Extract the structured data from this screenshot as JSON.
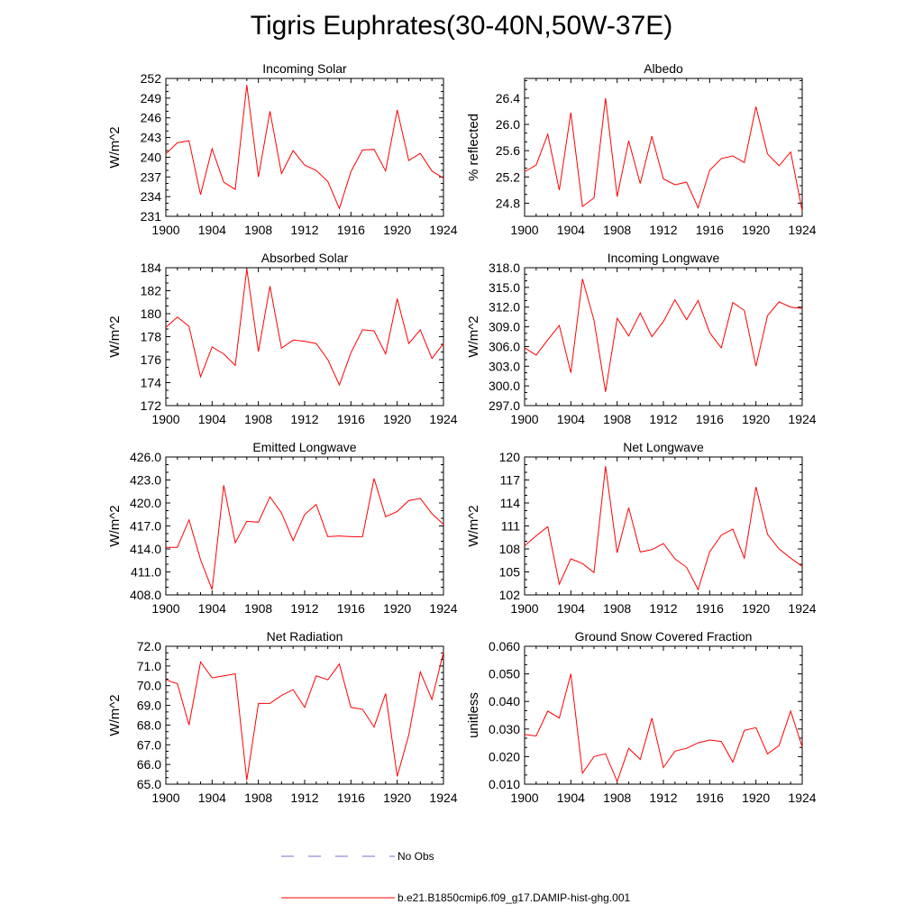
{
  "figure": {
    "title": "Tigris Euphrates(30-40N,50W-37E)",
    "line_color": "#ff0000",
    "obs_color": "#6f6fd0"
  },
  "legend": {
    "entries": [
      {
        "label": "No Obs",
        "style": "dashed",
        "color": "#6f6fd0"
      },
      {
        "label": "b.e21.B1850cmip6.f09_g17.DAMIP-hist-ghg.001",
        "style": "solid",
        "color": "#ff0000"
      }
    ]
  },
  "chart_data": [
    {
      "type": "line",
      "title": "Incoming Solar",
      "ylabel": "W/m^2",
      "xlim": [
        1900,
        1924
      ],
      "ylim": [
        231,
        252
      ],
      "xticks": [
        "1900",
        "1904",
        "1908",
        "1912",
        "1916",
        "1920",
        "1924"
      ],
      "yticks": [
        "231",
        "234",
        "237",
        "240",
        "243",
        "246",
        "249",
        "252"
      ],
      "grid": false,
      "x": [
        1900,
        1901,
        1902,
        1903,
        1904,
        1905,
        1906,
        1907,
        1908,
        1909,
        1910,
        1911,
        1912,
        1913,
        1914,
        1915,
        1916,
        1917,
        1918,
        1919,
        1920,
        1921,
        1922,
        1923,
        1924
      ],
      "series": [
        {
          "name": "b.e21.B1850cmip6.f09_g17.DAMIP-hist-ghg.001",
          "values": [
            240.5,
            242.2,
            242.5,
            234.3,
            241.3,
            236.2,
            235.1,
            251.0,
            237.0,
            247.0,
            237.5,
            241.0,
            238.8,
            238.0,
            236.3,
            232.2,
            237.8,
            241.1,
            241.2,
            237.9,
            247.2,
            239.5,
            240.6,
            237.9,
            236.8
          ]
        }
      ]
    },
    {
      "type": "line",
      "title": "Albedo",
      "ylabel": "% reflected",
      "xlim": [
        1900,
        1924
      ],
      "ylim": [
        24.6,
        26.7
      ],
      "xticks": [
        "1900",
        "1904",
        "1908",
        "1912",
        "1916",
        "1920",
        "1924"
      ],
      "yticks": [
        "24.8",
        "25.2",
        "25.6",
        "26.0",
        "26.4"
      ],
      "grid": false,
      "x": [
        1900,
        1901,
        1902,
        1903,
        1904,
        1905,
        1906,
        1907,
        1908,
        1909,
        1910,
        1911,
        1912,
        1913,
        1914,
        1915,
        1916,
        1917,
        1918,
        1919,
        1920,
        1921,
        1922,
        1923,
        1924
      ],
      "series": [
        {
          "name": "b.e21.B1850cmip6.f09_g17.DAMIP-hist-ghg.001",
          "values": [
            25.28,
            25.38,
            25.85,
            25.0,
            26.18,
            24.75,
            24.88,
            26.4,
            24.9,
            25.75,
            25.1,
            25.82,
            25.17,
            25.08,
            25.12,
            24.73,
            25.3,
            25.48,
            25.52,
            25.42,
            26.27,
            25.55,
            25.37,
            25.58,
            24.68
          ]
        }
      ]
    },
    {
      "type": "line",
      "title": "Absorbed Solar",
      "ylabel": "W/m^2",
      "xlim": [
        1900,
        1924
      ],
      "ylim": [
        172,
        184
      ],
      "xticks": [
        "1900",
        "1904",
        "1908",
        "1912",
        "1916",
        "1920",
        "1924"
      ],
      "yticks": [
        "172",
        "174",
        "176",
        "178",
        "180",
        "182",
        "184"
      ],
      "grid": false,
      "x": [
        1900,
        1901,
        1902,
        1903,
        1904,
        1905,
        1906,
        1907,
        1908,
        1909,
        1910,
        1911,
        1912,
        1913,
        1914,
        1915,
        1916,
        1917,
        1918,
        1919,
        1920,
        1921,
        1922,
        1923,
        1924
      ],
      "series": [
        {
          "name": "b.e21.B1850cmip6.f09_g17.DAMIP-hist-ghg.001",
          "values": [
            178.8,
            179.7,
            178.9,
            174.5,
            177.1,
            176.5,
            175.5,
            183.9,
            176.7,
            182.4,
            177.0,
            177.7,
            177.6,
            177.4,
            176.0,
            173.8,
            176.6,
            178.6,
            178.5,
            176.5,
            181.3,
            177.4,
            178.6,
            176.1,
            177.4
          ]
        }
      ]
    },
    {
      "type": "line",
      "title": "Incoming Longwave",
      "ylabel": "W/m^2",
      "xlim": [
        1900,
        1924
      ],
      "ylim": [
        297,
        318
      ],
      "xticks": [
        "1900",
        "1904",
        "1908",
        "1912",
        "1916",
        "1920",
        "1924"
      ],
      "yticks": [
        "297.0",
        "300.0",
        "303.0",
        "306.0",
        "309.0",
        "312.0",
        "315.0",
        "318.0"
      ],
      "grid": false,
      "x": [
        1900,
        1901,
        1902,
        1903,
        1904,
        1905,
        1906,
        1907,
        1908,
        1909,
        1910,
        1911,
        1912,
        1913,
        1914,
        1915,
        1916,
        1917,
        1918,
        1919,
        1920,
        1921,
        1922,
        1923,
        1924
      ],
      "series": [
        {
          "name": "b.e21.B1850cmip6.f09_g17.DAMIP-hist-ghg.001",
          "values": [
            305.8,
            304.7,
            307.0,
            309.2,
            302.0,
            316.3,
            310.0,
            299.1,
            310.3,
            307.6,
            311.1,
            307.5,
            309.8,
            313.1,
            310.1,
            313.0,
            308.1,
            305.8,
            312.7,
            311.5,
            303.0,
            310.7,
            312.8,
            312.0,
            311.8
          ]
        }
      ]
    },
    {
      "type": "line",
      "title": "Emitted Longwave",
      "ylabel": "W/m^2",
      "xlim": [
        1900,
        1924
      ],
      "ylim": [
        408,
        426
      ],
      "xticks": [
        "1900",
        "1904",
        "1908",
        "1912",
        "1916",
        "1920",
        "1924"
      ],
      "yticks": [
        "408.0",
        "411.0",
        "414.0",
        "417.0",
        "420.0",
        "423.0",
        "426.0"
      ],
      "grid": false,
      "x": [
        1900,
        1901,
        1902,
        1903,
        1904,
        1905,
        1906,
        1907,
        1908,
        1909,
        1910,
        1911,
        1912,
        1913,
        1914,
        1915,
        1916,
        1917,
        1918,
        1919,
        1920,
        1921,
        1922,
        1923,
        1924
      ],
      "series": [
        {
          "name": "b.e21.B1850cmip6.f09_g17.DAMIP-hist-ghg.001",
          "values": [
            414.2,
            414.2,
            417.8,
            412.6,
            408.7,
            422.3,
            414.8,
            417.6,
            417.5,
            420.8,
            418.7,
            415.1,
            418.5,
            419.8,
            415.6,
            415.7,
            415.6,
            415.6,
            423.2,
            418.2,
            418.9,
            420.3,
            420.6,
            418.6,
            417.2
          ]
        }
      ]
    },
    {
      "type": "line",
      "title": "Net Longwave",
      "ylabel": "W/m^2",
      "xlim": [
        1900,
        1924
      ],
      "ylim": [
        102,
        120
      ],
      "xticks": [
        "1900",
        "1904",
        "1908",
        "1912",
        "1916",
        "1920",
        "1924"
      ],
      "yticks": [
        "102",
        "105",
        "108",
        "111",
        "114",
        "117",
        "120"
      ],
      "grid": false,
      "x": [
        1900,
        1901,
        1902,
        1903,
        1904,
        1905,
        1906,
        1907,
        1908,
        1909,
        1910,
        1911,
        1912,
        1913,
        1914,
        1915,
        1916,
        1917,
        1918,
        1919,
        1920,
        1921,
        1922,
        1923,
        1924
      ],
      "series": [
        {
          "name": "b.e21.B1850cmip6.f09_g17.DAMIP-hist-ghg.001",
          "values": [
            108.4,
            109.7,
            110.9,
            103.4,
            106.7,
            106.1,
            104.9,
            118.8,
            107.5,
            113.4,
            107.6,
            107.9,
            108.7,
            106.7,
            105.6,
            102.7,
            107.6,
            109.8,
            110.6,
            106.8,
            116.1,
            109.9,
            108.0,
            106.8,
            105.7
          ]
        }
      ]
    },
    {
      "type": "line",
      "title": "Net Radiation",
      "ylabel": "W/m^2",
      "xlim": [
        1900,
        1924
      ],
      "ylim": [
        65,
        72
      ],
      "xticks": [
        "1900",
        "1904",
        "1908",
        "1912",
        "1916",
        "1920",
        "1924"
      ],
      "yticks": [
        "65.0",
        "66.0",
        "67.0",
        "68.0",
        "69.0",
        "70.0",
        "71.0",
        "72.0"
      ],
      "grid": false,
      "x": [
        1900,
        1901,
        1902,
        1903,
        1904,
        1905,
        1906,
        1907,
        1908,
        1909,
        1910,
        1911,
        1912,
        1913,
        1914,
        1915,
        1916,
        1917,
        1918,
        1919,
        1920,
        1921,
        1922,
        1923,
        1924
      ],
      "series": [
        {
          "name": "b.e21.B1850cmip6.f09_g17.DAMIP-hist-ghg.001",
          "values": [
            70.3,
            70.1,
            68.0,
            71.2,
            70.4,
            70.5,
            70.6,
            65.2,
            69.1,
            69.1,
            69.5,
            69.8,
            68.9,
            70.5,
            70.3,
            71.1,
            68.9,
            68.8,
            67.9,
            69.6,
            65.4,
            67.5,
            70.7,
            69.3,
            71.7
          ]
        }
      ]
    },
    {
      "type": "line",
      "title": "Ground Snow Covered Fraction",
      "ylabel": "unitless",
      "xlim": [
        1900,
        1924
      ],
      "ylim": [
        0.01,
        0.06
      ],
      "xticks": [
        "1900",
        "1904",
        "1908",
        "1912",
        "1916",
        "1920",
        "1924"
      ],
      "yticks": [
        "0.010",
        "0.020",
        "0.030",
        "0.040",
        "0.050",
        "0.060"
      ],
      "grid": false,
      "x": [
        1900,
        1901,
        1902,
        1903,
        1904,
        1905,
        1906,
        1907,
        1908,
        1909,
        1910,
        1911,
        1912,
        1913,
        1914,
        1915,
        1916,
        1917,
        1918,
        1919,
        1920,
        1921,
        1922,
        1923,
        1924
      ],
      "series": [
        {
          "name": "b.e21.B1850cmip6.f09_g17.DAMIP-hist-ghg.001",
          "values": [
            0.028,
            0.0275,
            0.0365,
            0.034,
            0.05,
            0.014,
            0.02,
            0.021,
            0.011,
            0.023,
            0.019,
            0.034,
            0.016,
            0.022,
            0.023,
            0.025,
            0.026,
            0.0255,
            0.018,
            0.0295,
            0.0305,
            0.021,
            0.024,
            0.0365,
            0.0235
          ]
        }
      ]
    }
  ]
}
